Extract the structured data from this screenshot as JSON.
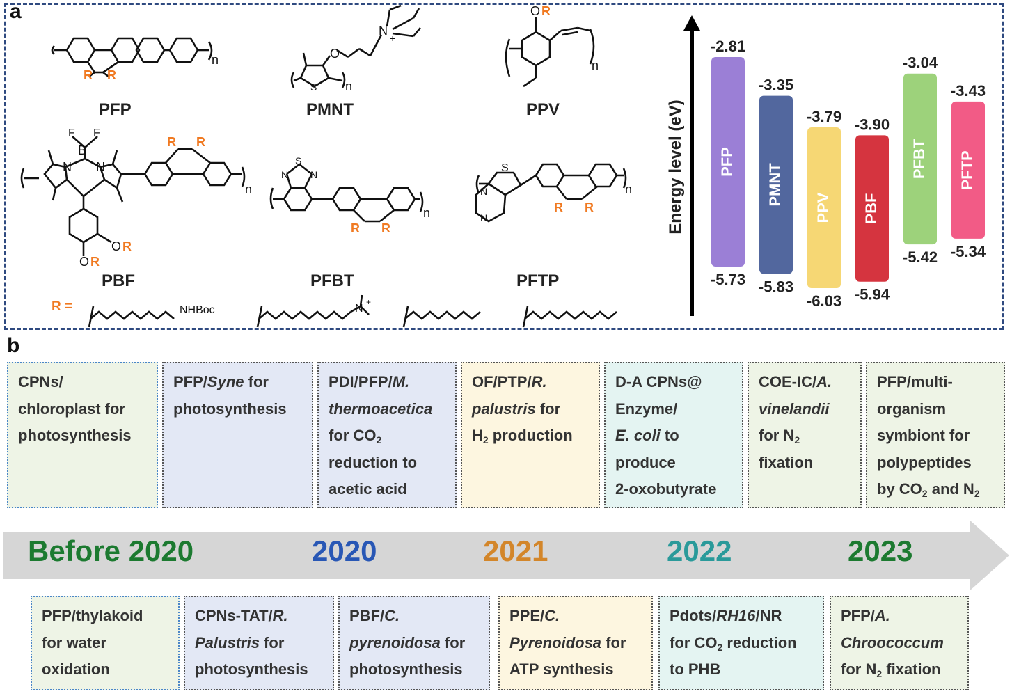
{
  "panel_a": {
    "letter": "a",
    "polymers": [
      "PFP",
      "PMNT",
      "PPV",
      "PBF",
      "PFBT",
      "PFTP"
    ],
    "r_definition": "R =",
    "r_symbol": "R",
    "structure_text": {
      "n": "n",
      "o": "O",
      "s": "S",
      "n_atom": "N",
      "b": "B",
      "f": "F",
      "n_plus": "N",
      "plus": "+",
      "nhboc": "NHBoc"
    }
  },
  "chart_data": {
    "type": "bar",
    "ylabel": "Energy level (eV)",
    "categories": [
      "PFP",
      "PMNT",
      "PPV",
      "PBF",
      "PFBT",
      "PFTP"
    ],
    "lumo_labels": [
      "-2.81",
      "-3.35",
      "-3.79",
      "-3.90",
      "-3.04",
      "-3.43"
    ],
    "homo_labels": [
      "-5.73",
      "-5.83",
      "-6.03",
      "-5.94",
      "-5.42",
      "-5.34"
    ],
    "lumo": [
      -2.81,
      -3.35,
      -3.79,
      -3.9,
      -3.04,
      -3.43
    ],
    "homo": [
      -5.73,
      -5.83,
      -6.03,
      -5.94,
      -5.42,
      -5.34
    ],
    "colors": [
      "#9b7fd6",
      "#52679e",
      "#f6d774",
      "#d5343f",
      "#9dd27b",
      "#f25b86"
    ]
  },
  "panel_b": {
    "letter": "b",
    "years": [
      {
        "label": "Before 2020",
        "color": "#1c7a30"
      },
      {
        "label": "2020",
        "color": "#2857b5"
      },
      {
        "label": "2021",
        "color": "#d3862a"
      },
      {
        "label": "2022",
        "color": "#2a9a9a"
      },
      {
        "label": "2023",
        "color": "#1c7a30"
      }
    ],
    "top_boxes": [
      [
        "CPNs/",
        "chloroplast for",
        "photosynthesis"
      ],
      [
        "PFP/Syne for",
        "photosynthesis"
      ],
      [
        "PDI/PFP/M.",
        "thermoacetica",
        "for CO2",
        "reduction to",
        "acetic acid"
      ],
      [
        "OF/PTP/R.",
        "palustris for",
        "H2 production"
      ],
      [
        "D-A CPNs@",
        "Enzyme/",
        "E. coli to",
        "produce",
        "2-oxobutyrate"
      ],
      [
        "COE-IC/A.",
        "vinelandii",
        "for N2",
        "fixation"
      ],
      [
        "PFP/multi-",
        "organism",
        "symbiont for",
        "polypeptides",
        "by CO2 and N2"
      ]
    ],
    "bottom_boxes": [
      [
        "PFP/thylakoid",
        "for water",
        "oxidation"
      ],
      [
        "CPNs-TAT/R.",
        "Palustris for",
        "photosynthesis"
      ],
      [
        "PBF/C.",
        "pyrenoidosa for",
        "photosynthesis"
      ],
      [
        "PPE/C.",
        "Pyrenoidosa for",
        "ATP synthesis"
      ],
      [
        "Pdots/RH16/NR",
        "for CO2 reduction",
        "to PHB"
      ],
      [
        "PFP/A.",
        "Chroococcum",
        "for N2 fixation"
      ]
    ]
  }
}
